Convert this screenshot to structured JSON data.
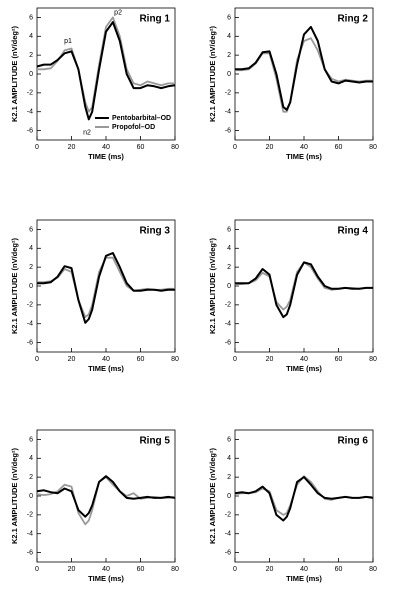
{
  "chart_data": [
    {
      "type": "line",
      "title": "Ring 1",
      "x_label": "TIME (ms)",
      "y_label": "K2.1 AMPLITUDE (nV/deg²)",
      "x": [
        0,
        4,
        8,
        12,
        16,
        20,
        24,
        28,
        30,
        32,
        36,
        40,
        44,
        48,
        52,
        56,
        60,
        64,
        68,
        72,
        76,
        80
      ],
      "series": [
        {
          "name": "Pentobarbital–OD",
          "color": "#000000",
          "values": [
            0.8,
            1.0,
            1.0,
            1.5,
            2.2,
            2.4,
            0.5,
            -3.5,
            -4.8,
            -4.0,
            0.5,
            4.5,
            5.5,
            3.5,
            0.0,
            -1.5,
            -1.5,
            -1.2,
            -1.3,
            -1.5,
            -1.3,
            -1.2
          ]
        },
        {
          "name": "Propofol–OD",
          "color": "#999999",
          "values": [
            0.5,
            0.5,
            0.6,
            1.4,
            2.5,
            2.7,
            0.5,
            -3.0,
            -4.0,
            -3.5,
            1.0,
            5.0,
            6.0,
            4.0,
            0.5,
            -1.0,
            -1.2,
            -0.8,
            -1.0,
            -1.2,
            -1.0,
            -1.0
          ]
        }
      ],
      "annotations": [
        {
          "text": "p1",
          "x": 18,
          "y": 3.5
        },
        {
          "text": "n2",
          "x": 29,
          "y": -6.2
        },
        {
          "text": "p2",
          "x": 47,
          "y": 6.5
        }
      ],
      "legend": true,
      "legend_loc": "lower right",
      "xlim": [
        0,
        80
      ],
      "ylim": [
        -7,
        7
      ],
      "xticks": [
        0,
        20,
        40,
        60,
        80
      ],
      "yticks": [
        -6,
        -4,
        -2,
        0,
        2,
        4,
        6
      ]
    },
    {
      "type": "line",
      "title": "Ring 2",
      "x_label": "TIME (ms)",
      "y_label": "K2.1 AMPLITUDE (nV/deg²)",
      "x": [
        0,
        4,
        8,
        12,
        16,
        20,
        24,
        28,
        30,
        32,
        36,
        40,
        44,
        48,
        52,
        56,
        60,
        64,
        68,
        72,
        76,
        80
      ],
      "series": [
        {
          "color": "#000000",
          "values": [
            0.5,
            0.5,
            0.6,
            1.2,
            2.3,
            2.4,
            0.0,
            -3.5,
            -3.8,
            -3.0,
            1.0,
            4.2,
            5.0,
            3.5,
            0.5,
            -0.8,
            -1.0,
            -0.7,
            -0.8,
            -0.9,
            -0.8,
            -0.8
          ]
        },
        {
          "color": "#999999",
          "values": [
            0.4,
            0.4,
            0.5,
            1.1,
            2.2,
            2.2,
            -0.5,
            -4.0,
            -4.0,
            -3.0,
            1.5,
            3.5,
            3.8,
            2.5,
            0.5,
            -0.5,
            -0.8,
            -0.6,
            -0.7,
            -0.8,
            -0.7,
            -0.7
          ]
        }
      ],
      "legend": false,
      "xlim": [
        0,
        80
      ],
      "ylim": [
        -7,
        7
      ],
      "xticks": [
        0,
        20,
        40,
        60,
        80
      ],
      "yticks": [
        -6,
        -4,
        -2,
        0,
        2,
        4,
        6
      ]
    },
    {
      "type": "line",
      "title": "Ring 3",
      "x_label": "TIME (ms)",
      "y_label": "K2.1 AMPLITUDE (nV/deg²)",
      "x": [
        0,
        4,
        8,
        12,
        16,
        20,
        24,
        28,
        30,
        32,
        36,
        40,
        44,
        48,
        52,
        56,
        60,
        64,
        68,
        72,
        76,
        80
      ],
      "series": [
        {
          "color": "#000000",
          "values": [
            0.3,
            0.3,
            0.4,
            1.0,
            2.1,
            1.9,
            -1.5,
            -3.9,
            -3.5,
            -2.5,
            1.0,
            3.2,
            3.5,
            2.0,
            0.3,
            -0.5,
            -0.5,
            -0.4,
            -0.4,
            -0.5,
            -0.4,
            -0.4
          ]
        },
        {
          "color": "#999999",
          "values": [
            0.4,
            0.4,
            0.5,
            0.9,
            1.8,
            1.5,
            -1.5,
            -3.3,
            -3.0,
            -2.0,
            1.5,
            3.0,
            3.0,
            1.5,
            0.0,
            -0.5,
            -0.4,
            -0.3,
            -0.4,
            -0.4,
            -0.3,
            -0.3
          ]
        }
      ],
      "legend": false,
      "xlim": [
        0,
        80
      ],
      "ylim": [
        -7,
        7
      ],
      "xticks": [
        0,
        20,
        40,
        60,
        80
      ],
      "yticks": [
        -6,
        -4,
        -2,
        0,
        2,
        4,
        6
      ]
    },
    {
      "type": "line",
      "title": "Ring 4",
      "x_label": "TIME (ms)",
      "y_label": "K2.1 AMPLITUDE (nV/deg²)",
      "x": [
        0,
        4,
        8,
        12,
        16,
        20,
        24,
        28,
        30,
        32,
        36,
        40,
        44,
        48,
        52,
        56,
        60,
        64,
        68,
        72,
        76,
        80
      ],
      "series": [
        {
          "color": "#000000",
          "values": [
            0.3,
            0.3,
            0.3,
            0.8,
            1.8,
            1.2,
            -2.0,
            -3.3,
            -3.0,
            -2.0,
            1.2,
            2.5,
            2.3,
            1.0,
            0.0,
            -0.3,
            -0.3,
            -0.2,
            -0.3,
            -0.3,
            -0.2,
            -0.2
          ]
        },
        {
          "color": "#999999",
          "values": [
            0.2,
            0.2,
            0.3,
            0.6,
            1.4,
            1.0,
            -1.7,
            -2.5,
            -2.2,
            -1.5,
            1.5,
            2.5,
            2.0,
            0.8,
            -0.2,
            -0.4,
            -0.3,
            -0.2,
            -0.2,
            -0.3,
            -0.2,
            -0.2
          ]
        }
      ],
      "legend": false,
      "xlim": [
        0,
        80
      ],
      "ylim": [
        -7,
        7
      ],
      "xticks": [
        0,
        20,
        40,
        60,
        80
      ],
      "yticks": [
        -6,
        -4,
        -2,
        0,
        2,
        4,
        6
      ]
    },
    {
      "type": "line",
      "title": "Ring 5",
      "x_label": "TIME (ms)",
      "y_label": "K2.1 AMPLITUDE (nV/deg²)",
      "x": [
        0,
        4,
        8,
        12,
        16,
        20,
        24,
        28,
        30,
        32,
        36,
        40,
        44,
        48,
        52,
        56,
        60,
        64,
        68,
        72,
        76,
        80
      ],
      "series": [
        {
          "color": "#000000",
          "values": [
            0.5,
            0.6,
            0.4,
            0.3,
            0.8,
            0.5,
            -1.5,
            -2.2,
            -1.8,
            -1.0,
            1.5,
            2.1,
            1.5,
            0.5,
            -0.2,
            -0.3,
            -0.2,
            -0.1,
            -0.2,
            -0.2,
            -0.1,
            -0.2
          ]
        },
        {
          "color": "#999999",
          "values": [
            0.2,
            0.1,
            0.2,
            0.5,
            1.2,
            1.0,
            -1.8,
            -3.0,
            -2.6,
            -1.5,
            1.5,
            2.0,
            1.2,
            0.5,
            0.0,
            0.3,
            -0.3,
            -0.2,
            -0.1,
            -0.2,
            -0.2,
            -0.1
          ]
        }
      ],
      "legend": false,
      "xlim": [
        0,
        80
      ],
      "ylim": [
        -7,
        7
      ],
      "xticks": [
        0,
        20,
        40,
        60,
        80
      ],
      "yticks": [
        -6,
        -4,
        -2,
        0,
        2,
        4,
        6
      ]
    },
    {
      "type": "line",
      "title": "Ring 6",
      "x_label": "TIME (ms)",
      "y_label": "K2.1 AMPLITUDE (nV/deg²)",
      "x": [
        0,
        4,
        8,
        12,
        16,
        20,
        24,
        28,
        30,
        32,
        36,
        40,
        44,
        48,
        52,
        56,
        60,
        64,
        68,
        72,
        76,
        80
      ],
      "series": [
        {
          "color": "#000000",
          "values": [
            0.3,
            0.4,
            0.3,
            0.5,
            1.0,
            0.3,
            -2.0,
            -2.6,
            -2.2,
            -1.3,
            1.5,
            2.0,
            1.2,
            0.3,
            -0.2,
            -0.3,
            -0.2,
            -0.1,
            -0.2,
            -0.2,
            -0.1,
            -0.2
          ]
        },
        {
          "color": "#999999",
          "values": [
            0.2,
            0.3,
            0.3,
            0.4,
            0.8,
            0.5,
            -1.5,
            -2.0,
            -1.8,
            -1.0,
            1.2,
            2.1,
            1.5,
            0.5,
            -0.3,
            -0.4,
            -0.2,
            -0.1,
            -0.2,
            -0.2,
            -0.1,
            -0.1
          ]
        }
      ],
      "legend": false,
      "xlim": [
        0,
        80
      ],
      "ylim": [
        -7,
        7
      ],
      "xticks": [
        0,
        20,
        40,
        60,
        80
      ],
      "yticks": [
        -6,
        -4,
        -2,
        0,
        2,
        4,
        6
      ]
    }
  ]
}
